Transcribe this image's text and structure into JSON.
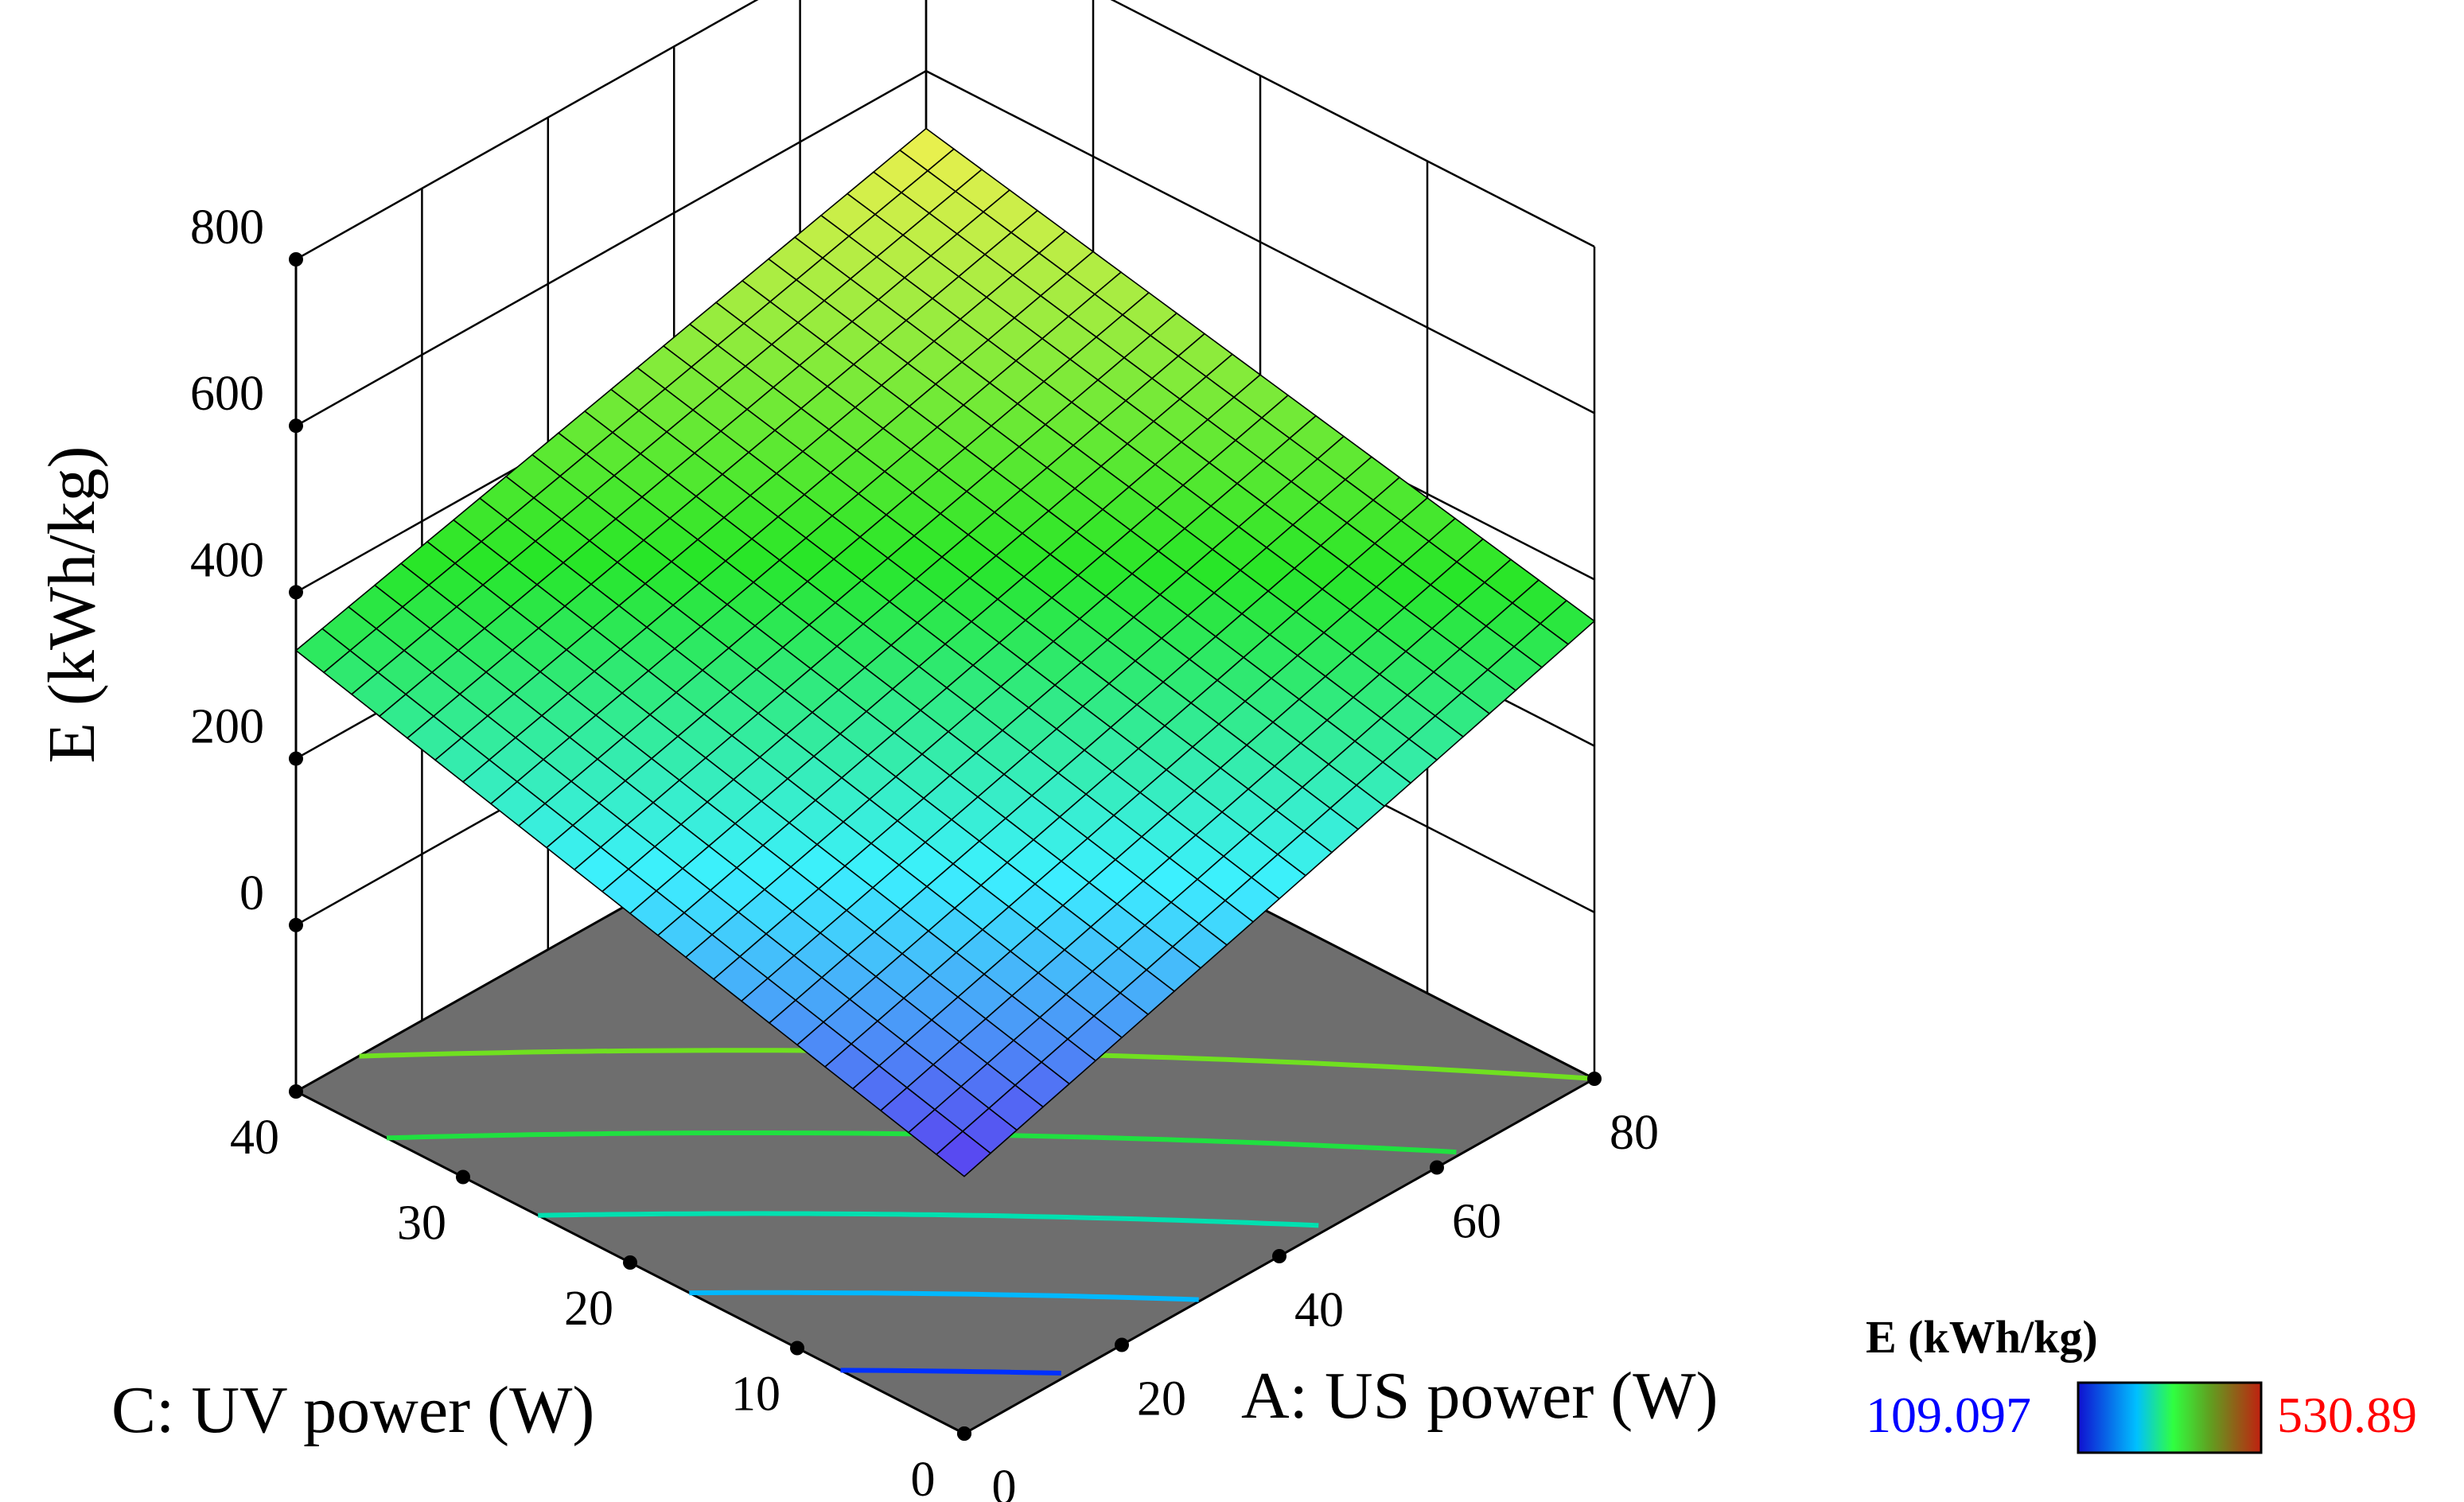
{
  "chart_data": {
    "type": "surface",
    "title": "",
    "xlabel": "A: US power (W)",
    "ylabel": "C: UV power (W)",
    "zlabel": "E (kWh/kg)",
    "x_ticks": [
      "0",
      "20",
      "40",
      "60",
      "80"
    ],
    "y_ticks": [
      "0",
      "10",
      "20",
      "30",
      "40"
    ],
    "z_ticks": [
      "0",
      "200",
      "400",
      "600",
      "800"
    ],
    "xlim": [
      0,
      80
    ],
    "ylim": [
      0,
      40
    ],
    "zlim": [
      -200,
      800
    ],
    "surface_corners": [
      {
        "x": 0,
        "y": 0,
        "z": 109.1
      },
      {
        "x": 80,
        "y": 0,
        "z": 350
      },
      {
        "x": 0,
        "y": 40,
        "z": 330
      },
      {
        "x": 80,
        "y": 40,
        "z": 530.9
      }
    ],
    "grid": true,
    "contours_on_floor": true,
    "floor_color": "#6e6e6e",
    "legend": {
      "title": "E (kWh/kg)",
      "min_label": "109.097",
      "max_label": "530.89",
      "min_color": "#0000ff",
      "max_color": "#ff0000",
      "gradient": [
        "#1010d0",
        "#00d0ff",
        "#00ff40",
        "#80c020",
        "#b03010"
      ]
    }
  }
}
